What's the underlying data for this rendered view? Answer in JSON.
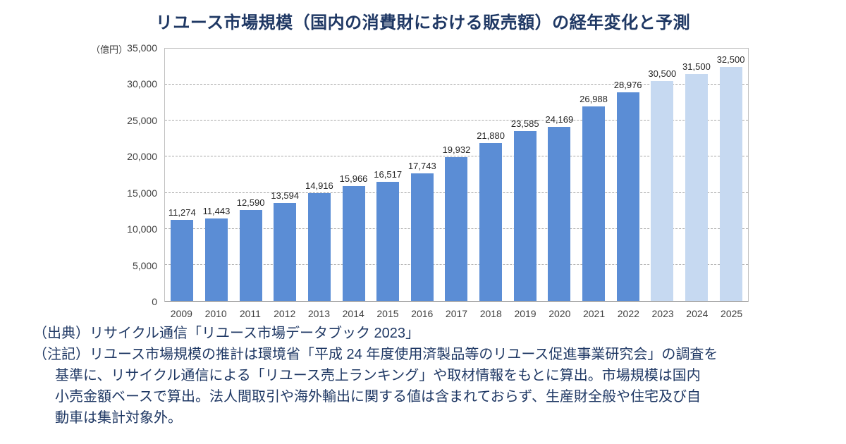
{
  "theme": {
    "background": "#FFFFFF",
    "text_navy": "#1F3864",
    "axis_text": "#404040",
    "gridline": "#A6A6A6",
    "plot_border": "#BFBFBF"
  },
  "chart_data": {
    "type": "bar",
    "title": "リユース市場規模（国内の消費財における販売額）の経年変化と予測",
    "unit_label": "（億円）",
    "categories": [
      "2009",
      "2010",
      "2011",
      "2012",
      "2013",
      "2014",
      "2015",
      "2016",
      "2017",
      "2018",
      "2019",
      "2020",
      "2021",
      "2022",
      "2023",
      "2024",
      "2025"
    ],
    "values": [
      11274,
      11443,
      12590,
      13594,
      14916,
      15966,
      16517,
      17743,
      19932,
      21880,
      23585,
      24169,
      26988,
      28976,
      30500,
      31500,
      32500
    ],
    "value_labels": [
      "11,274",
      "11,443",
      "12,590",
      "13,594",
      "14,916",
      "15,966",
      "16,517",
      "17,743",
      "19,932",
      "21,880",
      "23,585",
      "24,169",
      "26,988",
      "28,976",
      "30,500",
      "31,500",
      "32,500"
    ],
    "forecast_start_index": 14,
    "ylim": [
      0,
      35000
    ],
    "ytick_interval": 5000,
    "ytick_labels": [
      "0",
      "5,000",
      "10,000",
      "15,000",
      "20,000",
      "25,000",
      "30,000",
      "35,000"
    ],
    "grid": true,
    "legend": false,
    "colors": {
      "actual": "#5B8DD5",
      "forecast": "#C6D9F1"
    }
  },
  "footer": {
    "source": "（出典）リサイクル通信「リユース市場データブック 2023」",
    "notes": [
      "（注記）リユース市場規模の推計は環境省「平成 24 年度使用済製品等のリユース促進事業研究会」の調査を",
      "基準に、リサイクル通信による「リユース売上ランキング」や取材情報をもとに算出。市場規模は国内",
      "小売金額ベースで算出。法人間取引や海外輸出に関する値は含まれておらず、生産財全般や住宅及び自",
      "動車は集計対象外。"
    ]
  }
}
